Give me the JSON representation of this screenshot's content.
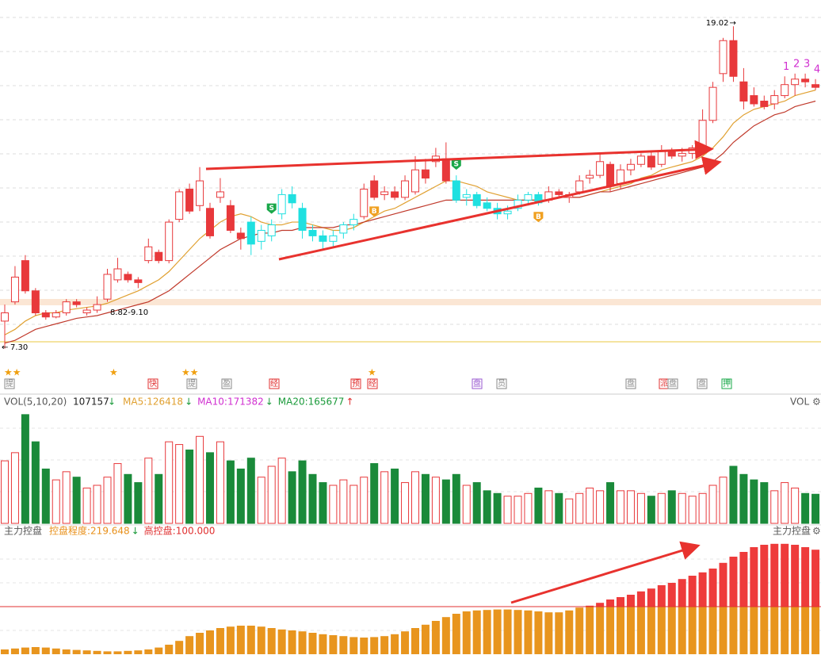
{
  "chart_data": [
    {
      "type": "candlestick",
      "candles": [
        [
          8.3,
          8.9,
          7.3,
          8.6
        ],
        [
          9.0,
          10.3,
          8.9,
          9.9
        ],
        [
          10.5,
          10.7,
          9.3,
          9.4
        ],
        [
          9.4,
          9.5,
          8.5,
          8.6
        ],
        [
          8.6,
          8.7,
          8.35,
          8.45
        ],
        [
          8.45,
          8.7,
          8.4,
          8.6
        ],
        [
          8.6,
          9.1,
          8.5,
          9.0
        ],
        [
          9.0,
          9.1,
          8.8,
          8.9
        ],
        [
          8.6,
          8.8,
          8.5,
          8.7
        ],
        [
          8.7,
          9.2,
          8.6,
          8.9
        ],
        [
          9.1,
          10.2,
          9.0,
          10.0
        ],
        [
          9.8,
          10.6,
          9.7,
          10.2
        ],
        [
          10.0,
          10.1,
          9.7,
          9.8
        ],
        [
          9.8,
          9.9,
          9.5,
          9.7
        ],
        [
          10.5,
          11.3,
          10.4,
          11.0
        ],
        [
          10.8,
          10.9,
          10.4,
          10.5
        ],
        [
          10.5,
          12.0,
          10.4,
          11.9
        ],
        [
          12.0,
          13.1,
          11.9,
          13.0
        ],
        [
          13.1,
          13.3,
          12.2,
          12.3
        ],
        [
          12.5,
          13.9,
          12.3,
          13.4
        ],
        [
          12.4,
          12.6,
          11.3,
          11.4
        ],
        [
          12.8,
          13.5,
          12.6,
          13.0
        ],
        [
          12.5,
          12.7,
          11.5,
          11.6
        ],
        [
          11.5,
          11.7,
          10.9,
          11.3
        ],
        [
          11.9,
          12.1,
          10.7,
          11.1
        ],
        [
          11.2,
          11.8,
          10.9,
          11.6
        ],
        [
          11.4,
          12.0,
          11.2,
          11.8
        ],
        [
          12.2,
          13.1,
          12.0,
          12.9
        ],
        [
          12.9,
          13.2,
          12.4,
          12.6
        ],
        [
          12.4,
          12.6,
          11.3,
          11.6
        ],
        [
          11.6,
          11.8,
          11.2,
          11.4
        ],
        [
          11.4,
          11.6,
          10.9,
          11.2
        ],
        [
          11.2,
          11.6,
          11.0,
          11.4
        ],
        [
          11.5,
          11.9,
          11.3,
          11.8
        ],
        [
          11.8,
          12.2,
          11.6,
          12.0
        ],
        [
          12.1,
          13.3,
          12.0,
          13.1
        ],
        [
          13.4,
          13.6,
          12.7,
          12.8
        ],
        [
          12.9,
          13.2,
          12.7,
          13.0
        ],
        [
          13.0,
          13.2,
          12.7,
          12.8
        ],
        [
          12.8,
          13.6,
          12.7,
          13.4
        ],
        [
          13.0,
          14.3,
          12.9,
          13.8
        ],
        [
          13.8,
          14.2,
          13.3,
          13.5
        ],
        [
          14.1,
          14.6,
          13.9,
          14.3
        ],
        [
          14.2,
          14.8,
          13.3,
          13.4
        ],
        [
          13.4,
          13.6,
          12.6,
          12.7
        ],
        [
          12.8,
          13.1,
          12.5,
          12.9
        ],
        [
          12.9,
          13.0,
          12.4,
          12.5
        ],
        [
          12.6,
          12.8,
          12.3,
          12.4
        ],
        [
          12.4,
          12.6,
          12.0,
          12.2
        ],
        [
          12.2,
          12.5,
          12.0,
          12.3
        ],
        [
          12.4,
          12.9,
          12.3,
          12.7
        ],
        [
          12.7,
          13.0,
          12.5,
          12.9
        ],
        [
          12.9,
          13.0,
          12.5,
          12.6
        ],
        [
          12.7,
          13.2,
          12.6,
          13.0
        ],
        [
          13.0,
          13.1,
          12.8,
          12.9
        ],
        [
          12.8,
          13.0,
          12.6,
          12.9
        ],
        [
          13.0,
          13.6,
          12.9,
          13.4
        ],
        [
          13.5,
          13.8,
          13.3,
          13.6
        ],
        [
          13.6,
          14.4,
          13.5,
          14.1
        ],
        [
          14.0,
          14.1,
          13.0,
          13.2
        ],
        [
          13.3,
          14.0,
          13.1,
          13.8
        ],
        [
          13.8,
          14.2,
          13.6,
          14.0
        ],
        [
          14.0,
          14.4,
          13.9,
          14.3
        ],
        [
          14.3,
          14.5,
          13.8,
          13.9
        ],
        [
          14.0,
          14.7,
          13.9,
          14.5
        ],
        [
          14.5,
          14.6,
          14.2,
          14.3
        ],
        [
          14.3,
          14.6,
          14.1,
          14.4
        ],
        [
          14.4,
          14.7,
          14.2,
          14.6
        ],
        [
          14.6,
          16.0,
          14.5,
          15.6
        ],
        [
          15.6,
          17.0,
          15.5,
          16.8
        ],
        [
          17.3,
          18.6,
          17.0,
          18.5
        ],
        [
          18.5,
          19.02,
          17.0,
          17.2
        ],
        [
          17.0,
          17.5,
          16.0,
          16.3
        ],
        [
          16.5,
          16.8,
          16.1,
          16.2
        ],
        [
          16.3,
          16.5,
          16.0,
          16.1
        ],
        [
          16.2,
          16.7,
          16.0,
          16.5
        ],
        [
          16.5,
          17.2,
          16.4,
          16.9
        ],
        [
          16.9,
          17.3,
          16.5,
          17.1
        ],
        [
          17.1,
          17.3,
          16.8,
          17.0
        ],
        [
          16.9,
          17.1,
          16.7,
          16.8
        ]
      ],
      "colors": [
        "#e8383b",
        "#e8383b",
        "#e8383b",
        "#e8383b",
        "#e8383b",
        "#e8383b",
        "#e8383b",
        "#e8383b",
        "#e8383b",
        "#e8383b",
        "#e8383b",
        "#e8383b",
        "#e8383b",
        "#e8383b",
        "#e8383b",
        "#e8383b",
        "#e8383b",
        "#e8383b",
        "#e8383b",
        "#e8383b",
        "#e8383b",
        "#e8383b",
        "#e8383b",
        "#e8383b",
        "#1fe0e0",
        "#1fe0e0",
        "#1fe0e0",
        "#1fe0e0",
        "#1fe0e0",
        "#1fe0e0",
        "#1fe0e0",
        "#1fe0e0",
        "#1fe0e0",
        "#1fe0e0",
        "#1fe0e0",
        "#e8383b",
        "#e8383b",
        "#e8383b",
        "#e8383b",
        "#e8383b",
        "#e8383b",
        "#e8383b",
        "#e8383b",
        "#e8383b",
        "#1fe0e0",
        "#1fe0e0",
        "#1fe0e0",
        "#1fe0e0",
        "#1fe0e0",
        "#1fe0e0",
        "#1fe0e0",
        "#1fe0e0",
        "#1fe0e0",
        "#e8383b",
        "#e8383b",
        "#e8383b",
        "#e8383b",
        "#e8383b",
        "#e8383b",
        "#e8383b",
        "#e8383b",
        "#e8383b",
        "#e8383b",
        "#e8383b",
        "#e8383b",
        "#e8383b",
        "#e8383b",
        "#e8383b",
        "#e8383b",
        "#e8383b",
        "#e8383b",
        "#e8383b",
        "#e8383b",
        "#e8383b",
        "#e8383b",
        "#e8383b",
        "#e8383b",
        "#e8383b",
        "#e8383b",
        "#e8383b"
      ],
      "ylim": [
        7.0,
        19.4
      ],
      "ma": [
        {
          "color": "#e0a030",
          "values": [
            7.8,
            8.0,
            8.3,
            8.5,
            8.6,
            8.6,
            8.7,
            8.75,
            8.8,
            8.85,
            8.95,
            9.1,
            9.25,
            9.4,
            9.6,
            9.8,
            10.1,
            10.5,
            10.9,
            11.3,
            11.6,
            11.9,
            12.1,
            12.2,
            12.1,
            11.9,
            11.8,
            11.8,
            11.9,
            11.9,
            11.8,
            11.7,
            11.6,
            11.6,
            11.7,
            11.9,
            12.1,
            12.3,
            12.4,
            12.6,
            12.8,
            13.0,
            13.2,
            13.4,
            13.4,
            13.3,
            13.2,
            13.0,
            12.9,
            12.8,
            12.7,
            12.7,
            12.7,
            12.7,
            12.8,
            12.8,
            12.8,
            12.9,
            13.0,
            13.1,
            13.2,
            13.3,
            13.5,
            13.6,
            13.8,
            13.9,
            14.0,
            14.1,
            14.3,
            14.6,
            15.0,
            15.5,
            15.8,
            16.0,
            16.1,
            16.2,
            16.3,
            16.5,
            16.6,
            16.7
          ]
        },
        {
          "color": "#c0392b",
          "values": [
            7.5,
            7.6,
            7.8,
            8.0,
            8.1,
            8.2,
            8.3,
            8.4,
            8.45,
            8.5,
            8.6,
            8.7,
            8.8,
            8.9,
            9.0,
            9.2,
            9.4,
            9.7,
            10.0,
            10.3,
            10.6,
            10.9,
            11.1,
            11.3,
            11.4,
            11.5,
            11.5,
            11.6,
            11.6,
            11.7,
            11.7,
            11.7,
            11.7,
            11.8,
            11.8,
            11.9,
            12.0,
            12.1,
            12.2,
            12.3,
            12.4,
            12.5,
            12.6,
            12.7,
            12.7,
            12.7,
            12.7,
            12.7,
            12.7,
            12.7,
            12.7,
            12.7,
            12.7,
            12.7,
            12.8,
            12.8,
            12.8,
            12.9,
            13.0,
            13.0,
            13.1,
            13.2,
            13.3,
            13.4,
            13.5,
            13.6,
            13.7,
            13.8,
            13.9,
            14.1,
            14.4,
            14.8,
            15.1,
            15.4,
            15.6,
            15.8,
            15.9,
            16.1,
            16.2,
            16.3
          ]
        }
      ],
      "price_labels": [
        "8.82-9.10",
        "7.30"
      ],
      "signals": [
        {
          "text": "S",
          "candle": 26,
          "side": "above",
          "color": "#1aa84a"
        },
        {
          "text": "S",
          "candle": 44,
          "side": "above",
          "color": "#1aa84a"
        },
        {
          "text": "B",
          "candle": 36,
          "side": "below",
          "color": "#f0a020"
        },
        {
          "text": "B",
          "candle": 52,
          "side": "below",
          "color": "#f0a020"
        }
      ],
      "wave_labels": [
        1,
        2,
        3,
        4
      ],
      "wave_color": "#d030d0",
      "badges": [
        {
          "text": "提",
          "color": "#8a8a8a"
        },
        {
          "text": "快",
          "color": "#e03030"
        },
        {
          "text": "提",
          "color": "#8a8a8a"
        },
        {
          "text": "盈",
          "color": "#8a8a8a"
        },
        {
          "text": "经",
          "color": "#e03030"
        },
        {
          "text": "预",
          "color": "#e03030"
        },
        {
          "text": "经",
          "color": "#e03030"
        },
        {
          "text": "盘",
          "color": "#9a5ad0"
        },
        {
          "text": "员",
          "color": "#8a8a8a"
        },
        {
          "text": "盘",
          "color": "#8a8a8a"
        },
        {
          "text": "派",
          "color": "#e03030"
        },
        {
          "text": "盘",
          "color": "#8a8a8a"
        },
        {
          "text": "盘",
          "color": "#8a8a8a"
        },
        {
          "text": "押",
          "color": "#1aa84a"
        }
      ]
    },
    {
      "type": "volume",
      "title": "VOL(5,10,20)",
      "current": 107157,
      "legend": [
        {
          "name": "MA5:",
          "value": 126418,
          "color": "#e0a030"
        },
        {
          "name": "MA10:",
          "value": 171382,
          "color": "#d030d0"
        },
        {
          "name": "MA20:",
          "value": 165677,
          "color": "#1a9a3a"
        }
      ],
      "axis_label": "VOL",
      "up_color": "#e8383b",
      "down_color": "#1a8a3a",
      "values": [
        230000,
        260000,
        400000,
        300000,
        200000,
        160000,
        190000,
        170000,
        130000,
        140000,
        170000,
        220000,
        180000,
        150000,
        240000,
        180000,
        300000,
        290000,
        270000,
        320000,
        260000,
        300000,
        230000,
        200000,
        240000,
        170000,
        210000,
        240000,
        190000,
        230000,
        180000,
        150000,
        140000,
        160000,
        140000,
        170000,
        220000,
        190000,
        200000,
        150000,
        190000,
        180000,
        170000,
        160000,
        180000,
        140000,
        150000,
        120000,
        110000,
        100000,
        100000,
        110000,
        130000,
        120000,
        110000,
        90000,
        110000,
        130000,
        120000,
        150000,
        120000,
        120000,
        110000,
        100000,
        110000,
        120000,
        110000,
        100000,
        110000,
        140000,
        170000,
        210000,
        180000,
        160000,
        150000,
        120000,
        150000,
        130000,
        110000,
        107157
      ],
      "ylim": [
        0,
        420000
      ]
    },
    {
      "type": "control",
      "title": "主力控盘",
      "legend": [
        {
          "name": "控盘程度:",
          "value": 219.648,
          "color": "#e8901a"
        },
        {
          "name": "高控盘:",
          "value": 100,
          "value_label": "100.000",
          "color": "#e03030"
        }
      ],
      "axis_label": "主力控盘",
      "base_color": "#e8951e",
      "high_color": "#ee3b3b",
      "values": [
        10,
        12,
        14,
        15,
        14,
        12,
        10,
        9,
        8,
        7,
        6,
        6,
        7,
        8,
        10,
        14,
        20,
        28,
        38,
        45,
        50,
        55,
        58,
        60,
        60,
        58,
        55,
        52,
        50,
        48,
        45,
        42,
        40,
        38,
        36,
        35,
        36,
        38,
        42,
        48,
        55,
        62,
        70,
        78,
        85,
        90,
        92,
        93,
        94,
        94,
        93,
        92,
        90,
        88,
        88,
        92,
        98,
        102,
        108,
        115,
        120,
        125,
        132,
        138,
        145,
        150,
        158,
        165,
        172,
        180,
        192,
        205,
        215,
        225,
        230,
        232,
        232,
        230,
        225,
        219.648
      ],
      "ylim": [
        0,
        240
      ]
    }
  ]
}
